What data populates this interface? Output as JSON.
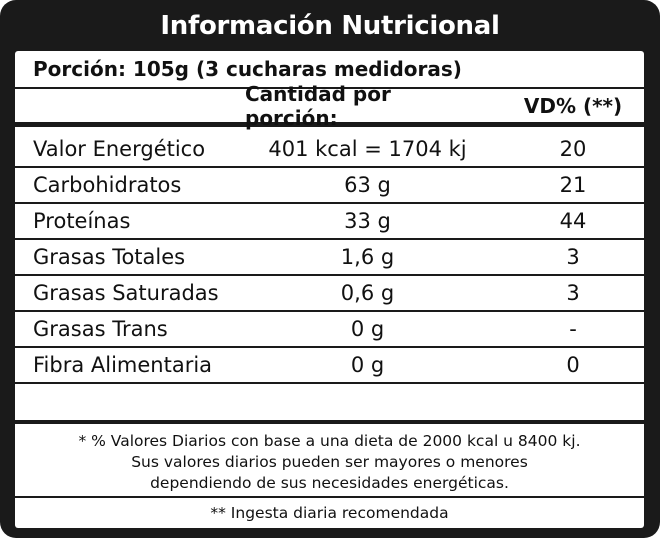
{
  "title": "Información Nutricional",
  "serving": "Porción: 105g (3 cucharas medidoras)",
  "headers": {
    "amount": "Cantidad por porción:",
    "vd": "VD% (**)"
  },
  "rows": [
    {
      "name": "Valor Energético",
      "amount": "401 kcal = 1704 kj",
      "vd": "20"
    },
    {
      "name": "Carbohidratos",
      "amount": "63 g",
      "vd": "21"
    },
    {
      "name": "Proteínas",
      "amount": "33 g",
      "vd": "44"
    },
    {
      "name": "Grasas Totales",
      "amount": "1,6 g",
      "vd": "3"
    },
    {
      "name": "Grasas Saturadas",
      "amount": "0,6 g",
      "vd": "3"
    },
    {
      "name": "Grasas Trans",
      "amount": "0 g",
      "vd": "-"
    },
    {
      "name": "Fibra Alimentaria",
      "amount": "0 g",
      "vd": "0"
    }
  ],
  "footnote": [
    "* % Valores Diarios con base a una dieta de 2000 kcal u 8400 kj.",
    "Sus valores diarios pueden ser mayores o menores",
    "dependiendo de sus necesidades energéticas."
  ],
  "footnote2": "** Ingesta diaria recomendada",
  "colors": {
    "frame": "#1a1a1a",
    "text": "#111111",
    "background": "#ffffff"
  }
}
